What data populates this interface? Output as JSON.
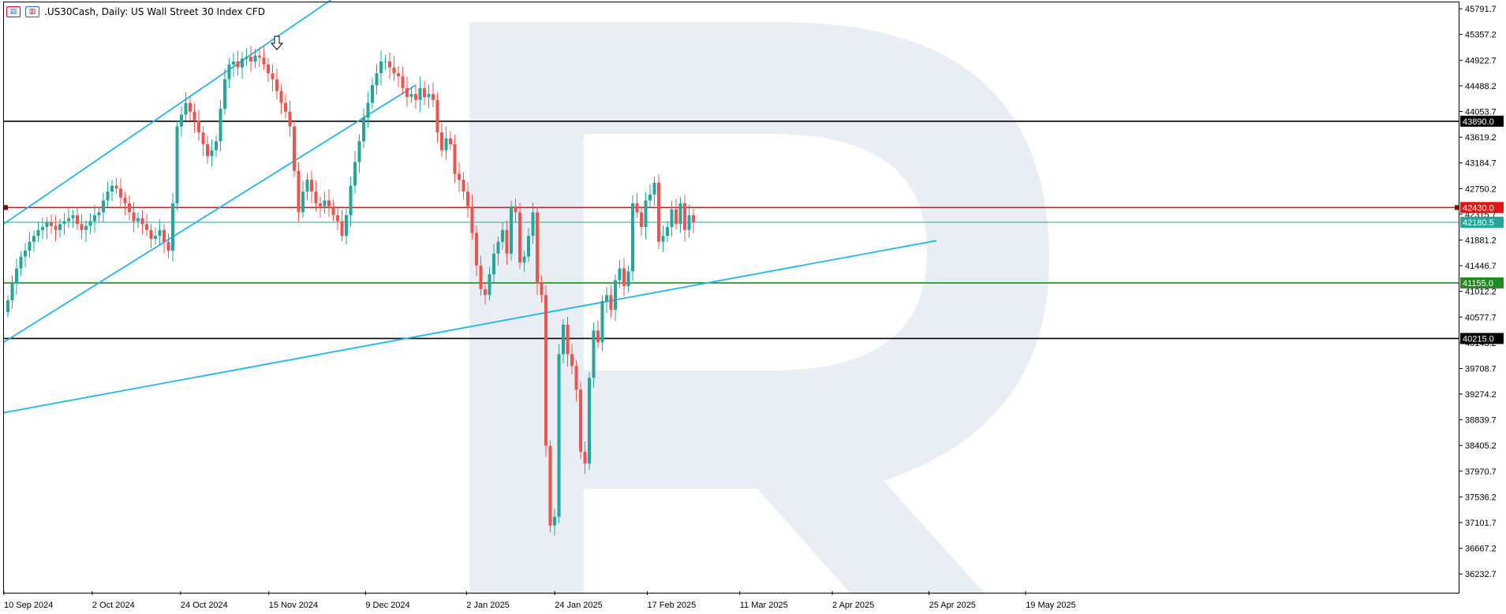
{
  "header": {
    "symbol_title": ".US30Cash, Daily:  US Wall Street 30 Index CFD",
    "icon_left": "bar-chart-icon",
    "icon_right": "indicator-icon"
  },
  "price_axis": {
    "ticks": [
      "45791.7",
      "45357.2",
      "44922.7",
      "44488.2",
      "44053.7",
      "43619.2",
      "43184.7",
      "42750.2",
      "42315.7",
      "41881.2",
      "41446.7",
      "41012.2",
      "40577.7",
      "40143.2",
      "39708.7",
      "39274.2",
      "38839.7",
      "38405.2",
      "37970.7",
      "37536.2",
      "37101.7",
      "36667.2",
      "36232.7"
    ],
    "min": 35942.0,
    "max": 45900.0
  },
  "time_axis": {
    "labels": [
      "10 Sep 2024",
      "2 Oct 2024",
      "24 Oct 2024",
      "15 Nov 2024",
      "9 Dec 2024",
      "2 Jan 2025",
      "24 Jan 2025",
      "17 Feb 2025",
      "11 Mar 2025",
      "2 Apr 2025",
      "25 Apr 2025",
      "19 May 2025"
    ]
  },
  "levels": [
    {
      "name": "resistance-upper",
      "value": 43890.0,
      "label": "43890.0",
      "color": "#000000",
      "label_bg": "#000000",
      "label_fg": "#ffffff"
    },
    {
      "name": "resistance",
      "value": 42430.0,
      "label": "42430.0",
      "color": "#e41414",
      "label_bg": "#e41414",
      "label_fg": "#ffffff"
    },
    {
      "name": "current-price",
      "value": 42180.5,
      "label": "42180.5",
      "color": "#26a69a",
      "label_bg": "#26a69a",
      "label_fg": "#ffffff"
    },
    {
      "name": "support",
      "value": 41155.0,
      "label": "41155.0",
      "color": "#1f8a1f",
      "label_bg": "#1f8a1f",
      "label_fg": "#ffffff"
    },
    {
      "name": "support-lower",
      "value": 40215.0,
      "label": "40215.0",
      "color": "#000000",
      "label_bg": "#000000",
      "label_fg": "#ffffff"
    }
  ],
  "colors": {
    "bull": "#26a69a",
    "bear": "#ef5350",
    "trendline": "#1fb5ef",
    "watermark": "#e9eef5"
  },
  "signal_marker": {
    "icon": "down-arrow-icon",
    "bar_index": 62
  },
  "chart_data": {
    "type": "candlestick",
    "title": ".US30Cash, Daily:  US Wall Street 30 Index CFD",
    "ylim": [
      35942.0,
      45900.0
    ],
    "start_label": "10 Sep 2024",
    "close": [
      40860,
      41150,
      41400,
      41600,
      41700,
      41850,
      41950,
      42050,
      42100,
      42180,
      42120,
      42050,
      42150,
      42200,
      42250,
      42300,
      42150,
      42050,
      42120,
      42200,
      42300,
      42350,
      42550,
      42700,
      42800,
      42750,
      42600,
      42500,
      42350,
      42200,
      42250,
      42150,
      42050,
      41900,
      41950,
      42050,
      41850,
      41700,
      42500,
      43800,
      44000,
      44200,
      44050,
      43900,
      43700,
      43500,
      43300,
      43400,
      43550,
      44100,
      44600,
      44850,
      44900,
      44800,
      44950,
      44980,
      44900,
      45000,
      44970,
      44850,
      44700,
      44600,
      44400,
      44200,
      44050,
      43800,
      43050,
      42350,
      42700,
      42900,
      42700,
      42500,
      42450,
      42550,
      42450,
      42300,
      42200,
      41950,
      42300,
      42800,
      43200,
      43550,
      43950,
      44200,
      44500,
      44700,
      44900,
      44900,
      44800,
      44700,
      44650,
      44450,
      44300,
      44350,
      44250,
      44450,
      44300,
      44350,
      44250,
      43700,
      43400,
      43600,
      43500,
      43000,
      42900,
      42700,
      42450,
      42000,
      41450,
      41050,
      40950,
      41300,
      41650,
      41850,
      42050,
      41650,
      42450,
      42350,
      41500,
      41600,
      41950,
      42350,
      41150,
      40950,
      38400,
      37050,
      37200,
      39950,
      40450,
      39950,
      39750,
      39350,
      38300,
      38100,
      39550,
      40350,
      40150,
      40850,
      40950,
      40700,
      41200,
      41400,
      41100,
      41350,
      42500,
      42350,
      42100,
      42550,
      42650,
      42850,
      41850,
      41950,
      42100,
      42400,
      42150,
      42500,
      42050,
      42300,
      42180
    ]
  }
}
